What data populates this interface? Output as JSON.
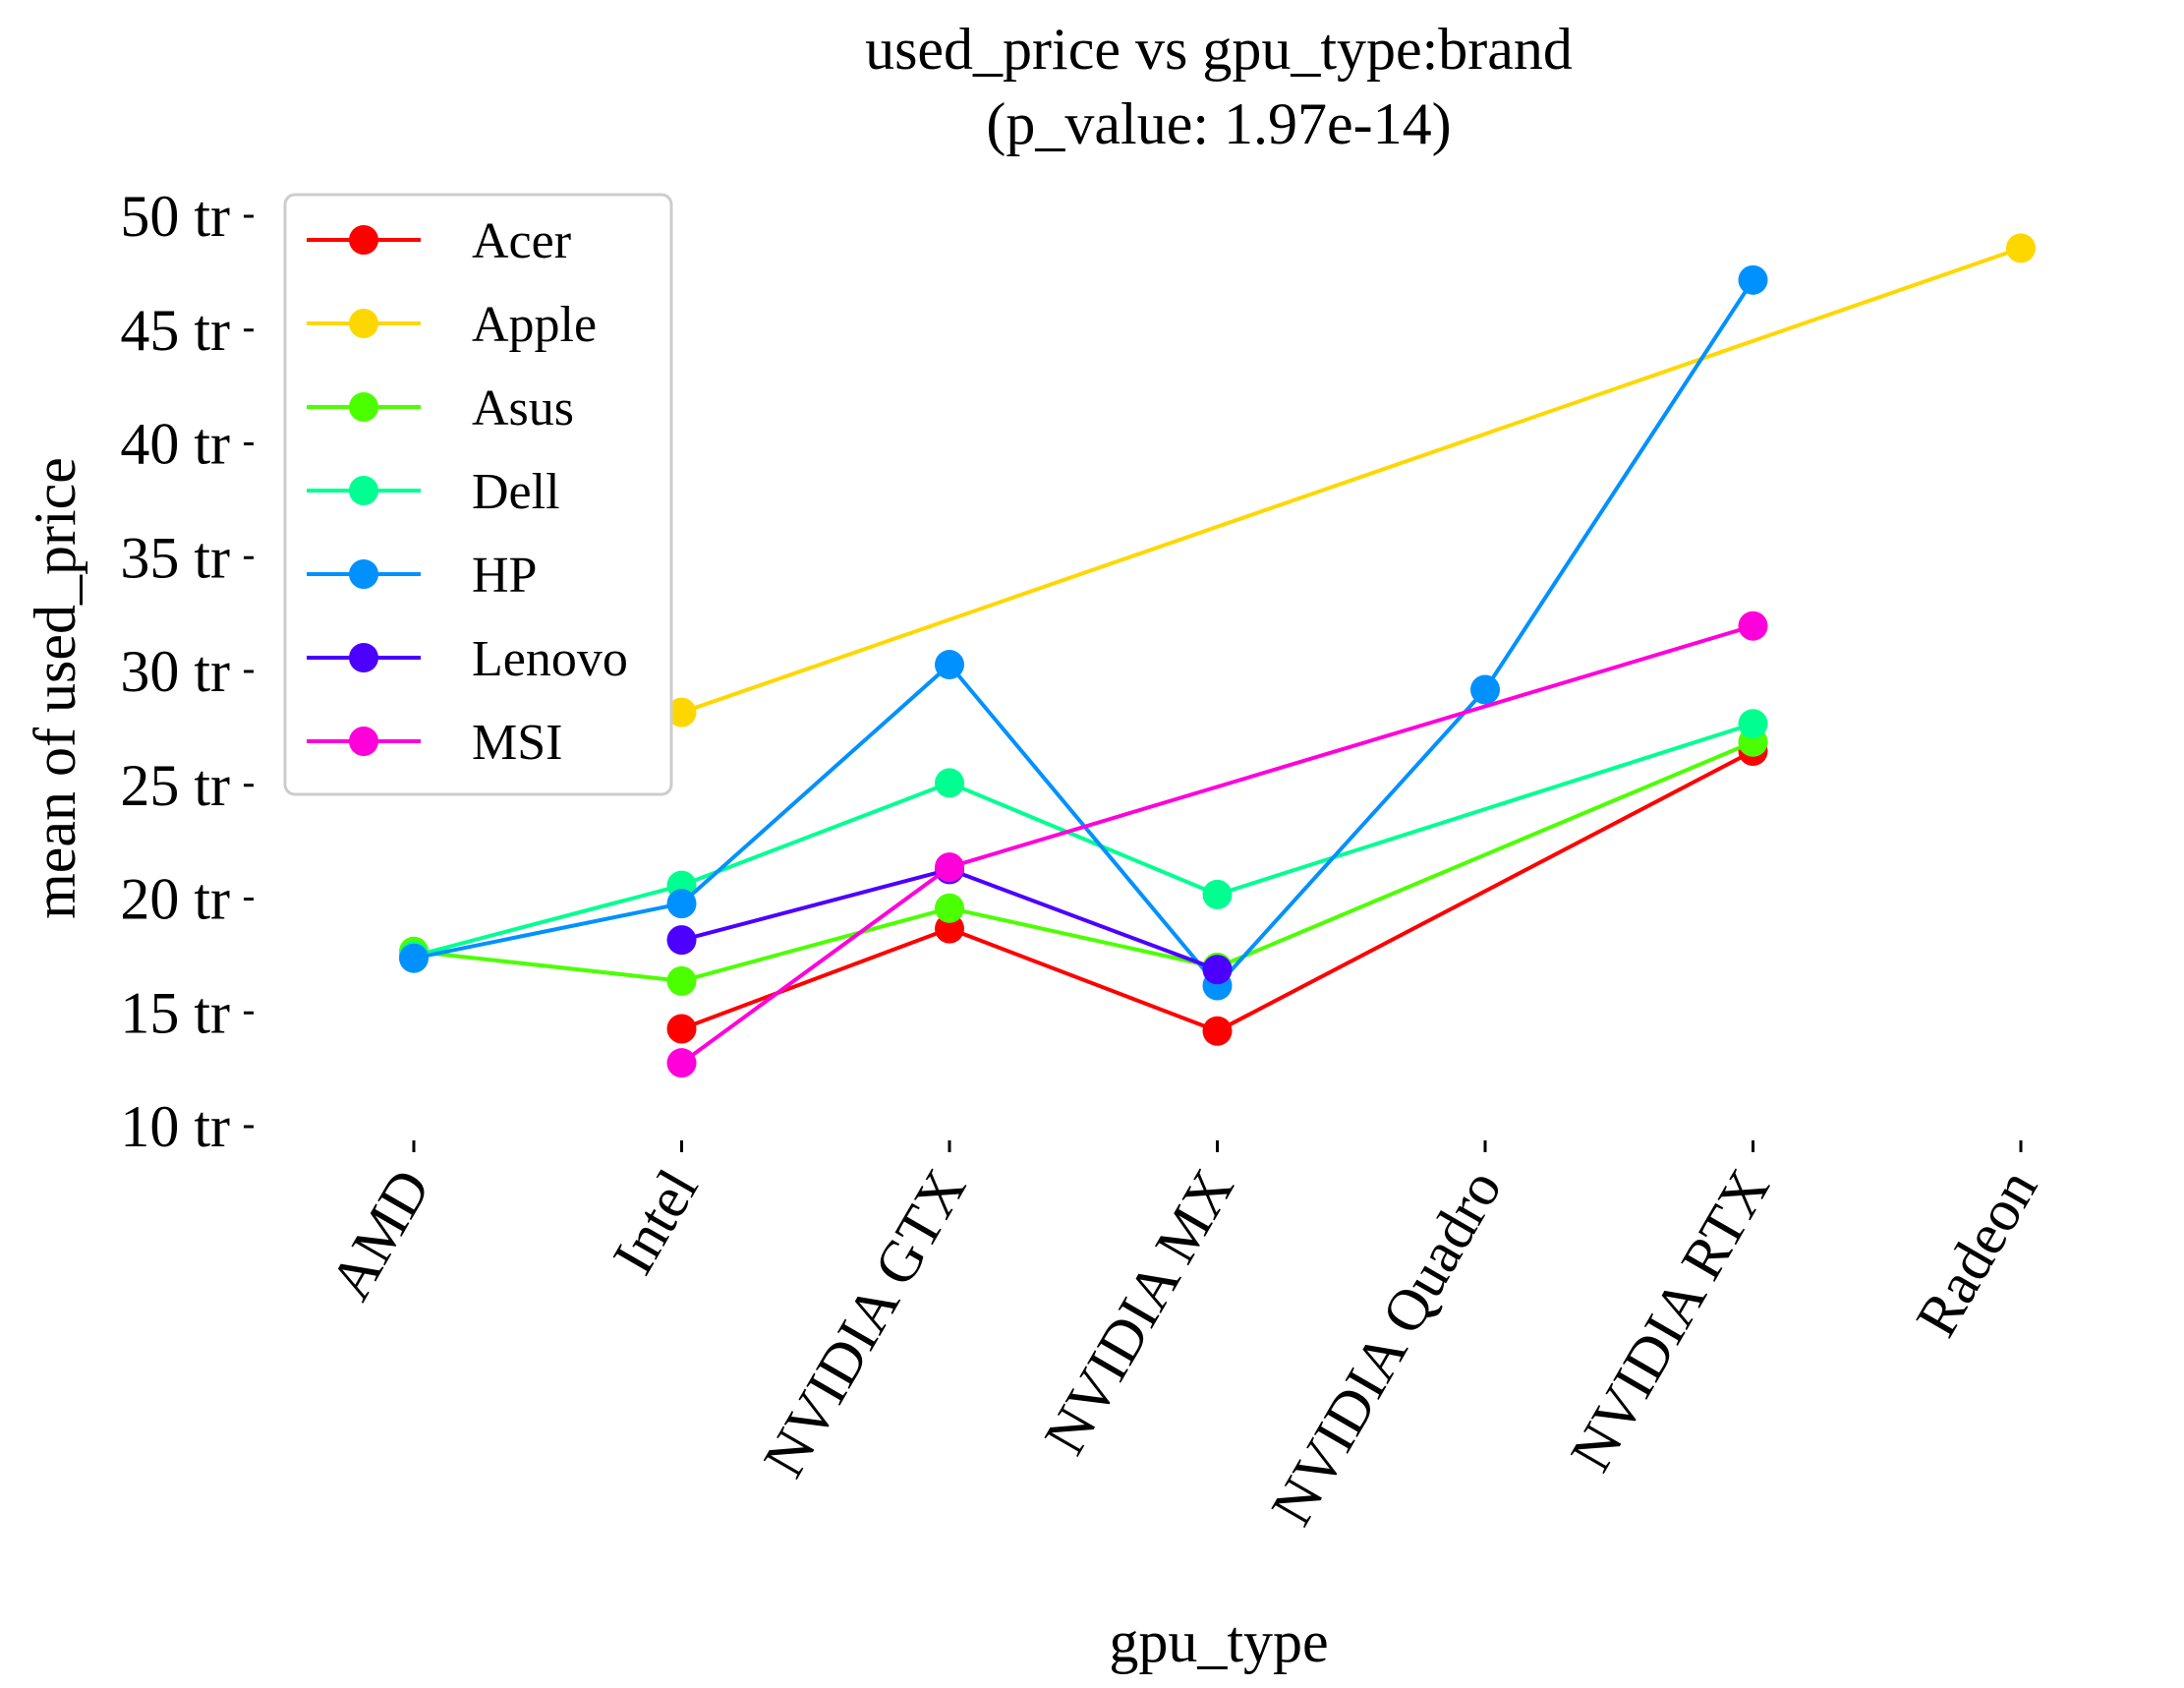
{
  "chart_data": {
    "type": "line",
    "title_line1": "used_price vs gpu_type:brand",
    "title_line2": "(p_value: 1.97e-14)",
    "xlabel": "gpu_type",
    "ylabel": "mean of used_price",
    "categories": [
      "AMD",
      "Intel",
      "NVIDIA GTX",
      "NVIDIA MX",
      "NVIDIA Quadro",
      "NVIDIA RTX",
      "Radeon"
    ],
    "ylim": [
      10,
      50
    ],
    "yticks": [
      {
        "value": 10,
        "label": "10 tr"
      },
      {
        "value": 15,
        "label": "15 tr"
      },
      {
        "value": 20,
        "label": "20 tr"
      },
      {
        "value": 25,
        "label": "25 tr"
      },
      {
        "value": 30,
        "label": "30 tr"
      },
      {
        "value": 35,
        "label": "35 tr"
      },
      {
        "value": 40,
        "label": "40 tr"
      },
      {
        "value": 45,
        "label": "45 tr"
      },
      {
        "value": 50,
        "label": "50 tr"
      }
    ],
    "grid": false,
    "legend_position": "upper-left",
    "series": [
      {
        "name": "Acer",
        "color": "#ff0000",
        "values": [
          null,
          14.3,
          18.7,
          14.2,
          null,
          26.5,
          null
        ]
      },
      {
        "name": "Apple",
        "color": "#ffd700",
        "values": [
          null,
          28.2,
          null,
          null,
          null,
          null,
          48.6
        ]
      },
      {
        "name": "Asus",
        "color": "#4cff00",
        "values": [
          17.7,
          16.4,
          19.6,
          17.0,
          null,
          26.9,
          null
        ]
      },
      {
        "name": "Dell",
        "color": "#00ff91",
        "values": [
          17.5,
          20.6,
          25.1,
          20.2,
          null,
          27.7,
          null
        ]
      },
      {
        "name": "HP",
        "color": "#0091ff",
        "values": [
          17.4,
          19.8,
          30.3,
          16.2,
          29.2,
          47.2,
          null
        ]
      },
      {
        "name": "Lenovo",
        "color": "#4c00ff",
        "values": [
          null,
          18.2,
          21.3,
          16.9,
          null,
          null,
          null
        ]
      },
      {
        "name": "MSI",
        "color": "#ff00db",
        "values": [
          null,
          12.8,
          21.4,
          null,
          null,
          32.0,
          null
        ]
      }
    ]
  }
}
